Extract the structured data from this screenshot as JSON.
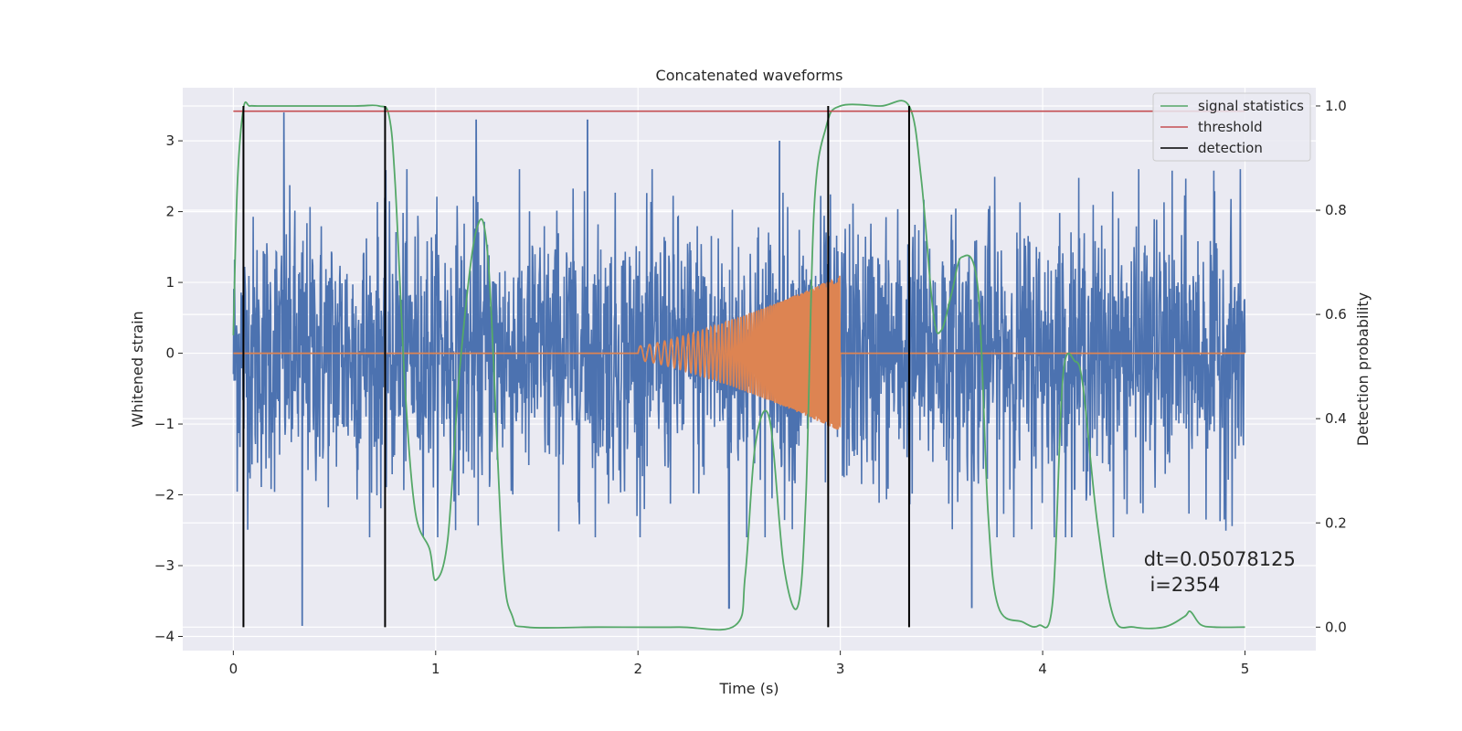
{
  "chart_data": {
    "type": "line",
    "title": "Concatenated waveforms",
    "xlabel": "Time (s)",
    "ylabel": "Whitened strain",
    "y2label": "Detection probability",
    "xlim": [
      -0.25,
      5.35
    ],
    "ylim": [
      -4.2,
      3.75
    ],
    "y2lim": [
      -0.045,
      1.035
    ],
    "xticks": [
      0,
      1,
      2,
      3,
      4,
      5
    ],
    "xtick_labels": [
      "0",
      "1",
      "2",
      "3",
      "4",
      "5"
    ],
    "yticks": [
      -4,
      -3,
      -2,
      -1,
      0,
      1,
      2,
      3
    ],
    "ytick_labels": [
      "−4",
      "−3",
      "−2",
      "−1",
      "0",
      "1",
      "2",
      "3"
    ],
    "y2ticks": [
      0.0,
      0.2,
      0.4,
      0.6,
      0.8,
      1.0
    ],
    "y2tick_labels": [
      "0.0",
      "0.2",
      "0.4",
      "0.6",
      "0.8",
      "1.0"
    ],
    "grid": true,
    "legend_position": "top-right",
    "colors": {
      "background": "#eaeaf2",
      "noise": "#4c72b0",
      "template": "#dd8452",
      "signal_statistics": "#55a868",
      "threshold": "#c44e52",
      "detection": "#000000"
    },
    "series": [
      {
        "name": "",
        "role": "noise",
        "description_range": [
          0,
          5
        ],
        "values_summary": "whitened strain noise, roughly between -3.8 and 3.4",
        "peaks": [
          [
            0.25,
            3.4
          ],
          [
            0.34,
            -3.85
          ],
          [
            1.2,
            3.3
          ],
          [
            1.75,
            3.3
          ],
          [
            2.45,
            -3.6
          ],
          [
            2.7,
            3.0
          ],
          [
            3.65,
            -3.6
          ]
        ]
      },
      {
        "name": "",
        "role": "injected chirp template",
        "x_start": 2.0,
        "x_end": 3.0,
        "amplitude_start": 0.1,
        "amplitude_end": 1.1
      },
      {
        "name": "signal statistics",
        "axis": "right",
        "x": [
          0,
          0.02,
          0.05,
          0.08,
          0.12,
          0.3,
          0.6,
          0.72,
          0.77,
          0.8,
          0.85,
          0.9,
          0.97,
          1.0,
          1.06,
          1.12,
          1.2,
          1.26,
          1.33,
          1.38,
          1.45,
          1.8,
          2.2,
          2.48,
          2.53,
          2.58,
          2.65,
          2.72,
          2.79,
          2.83,
          2.87,
          2.93,
          3.0,
          3.2,
          3.34,
          3.4,
          3.46,
          3.5,
          3.55,
          3.6,
          3.68,
          3.73,
          3.78,
          3.9,
          3.98,
          4.05,
          4.1,
          4.16,
          4.2,
          4.27,
          4.35,
          4.45,
          4.6,
          4.7,
          4.73,
          4.78,
          4.85,
          5.0
        ],
        "y": [
          0.56,
          0.85,
          0.995,
          1.0,
          1.0,
          1.0,
          1.0,
          1.0,
          0.98,
          0.85,
          0.45,
          0.22,
          0.15,
          0.09,
          0.17,
          0.5,
          0.76,
          0.7,
          0.14,
          0.02,
          0.0,
          0.0,
          0.0,
          0.003,
          0.1,
          0.35,
          0.4,
          0.12,
          0.04,
          0.25,
          0.8,
          0.96,
          1.0,
          1.0,
          1.0,
          0.86,
          0.6,
          0.57,
          0.64,
          0.71,
          0.65,
          0.22,
          0.04,
          0.01,
          0.003,
          0.05,
          0.48,
          0.51,
          0.46,
          0.2,
          0.02,
          0.0,
          0.0,
          0.02,
          0.03,
          0.005,
          0.0,
          0.0
        ]
      },
      {
        "name": "threshold",
        "axis": "right",
        "x": [
          0,
          5
        ],
        "y": [
          0.99,
          0.99
        ]
      }
    ],
    "detections": [
      0.05,
      0.75,
      2.94,
      3.34
    ],
    "detection_name": "detection",
    "annotation": {
      "line1": "dt=0.05078125",
      "line2": " i=2354",
      "x": 4.5,
      "y": -3.0
    }
  }
}
